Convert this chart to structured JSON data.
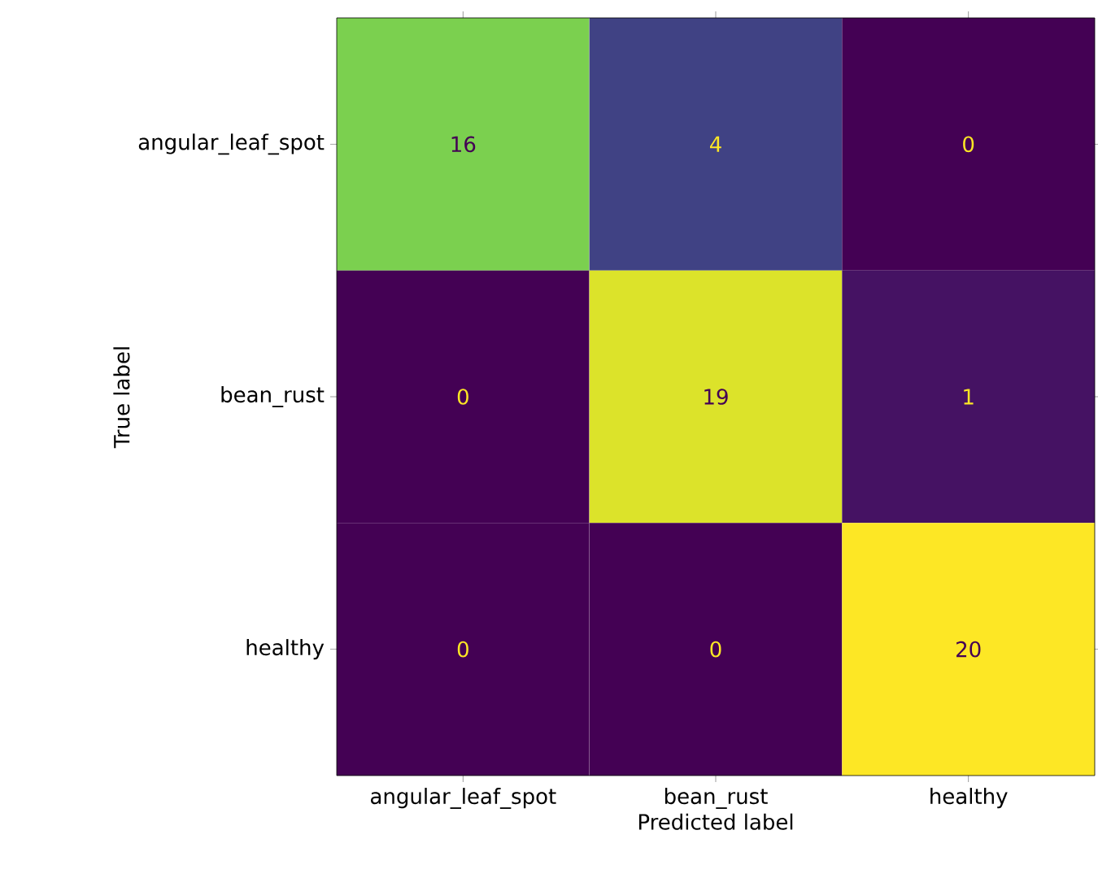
{
  "chart_data": {
    "type": "heatmap",
    "xlabel": "Predicted label",
    "ylabel": "True label",
    "categories": [
      "angular_leaf_spot",
      "bean_rust",
      "healthy"
    ],
    "y_categories": [
      "angular_leaf_spot",
      "bean_rust",
      "healthy"
    ],
    "cells": [
      [
        16,
        4,
        0
      ],
      [
        0,
        19,
        1
      ],
      [
        0,
        0,
        20
      ]
    ],
    "data_labels": true
  }
}
